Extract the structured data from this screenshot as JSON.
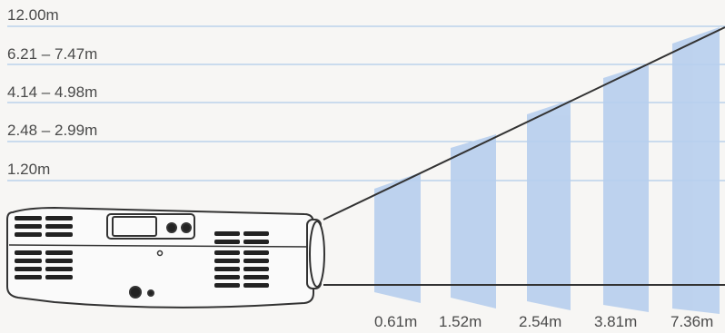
{
  "screen_size_labels": [
    "12.00m",
    "6.21 – 7.47m",
    "4.14 – 4.98m",
    "2.48 – 2.99m",
    "1.20m"
  ],
  "distance_labels": [
    "0.61m",
    "1.52m",
    "2.54m",
    "3.81m",
    "7.36m"
  ],
  "colors": {
    "background": "#f7f6f4",
    "screen_fill": "#b7cfee",
    "guide_line": "#9cc0e6",
    "projector_outline": "#333333",
    "label_text": "#4a4a4a"
  }
}
